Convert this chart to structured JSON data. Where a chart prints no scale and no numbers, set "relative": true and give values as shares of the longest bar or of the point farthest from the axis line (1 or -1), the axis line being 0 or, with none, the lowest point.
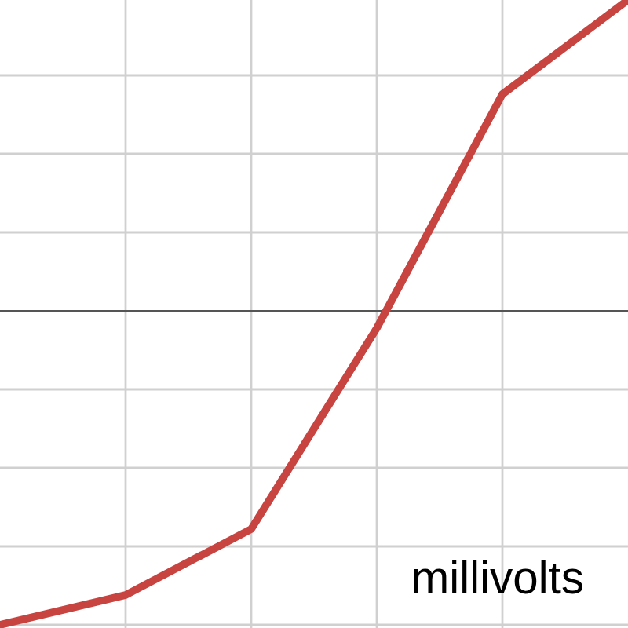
{
  "chart_data": {
    "type": "line",
    "relative": true,
    "categories": [
      null,
      null,
      null,
      null,
      null,
      null
    ],
    "series": [
      {
        "color": "#c74440",
        "values": [
          -1,
          -0.905,
          -0.695,
          -0.055,
          0.69,
          0.99
        ]
      }
    ],
    "annotations": [
      "millivolts"
    ],
    "grid": true,
    "marker": "none",
    "line_style": "solid"
  }
}
